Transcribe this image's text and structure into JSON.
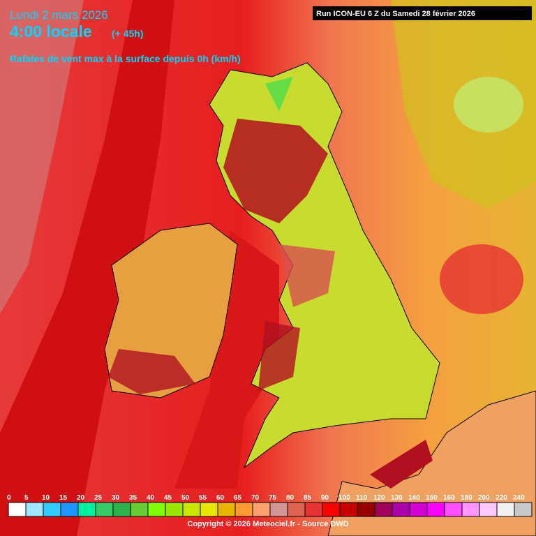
{
  "header": {
    "date": "Lundi 2 mars 2026",
    "time": "4:00 locale",
    "lead": "(+ 45h)",
    "parameter": "Rafales de vent max à la surface depuis 0h (km/h)",
    "run": "Run ICON-EU 6 Z du Samedi 28 février 2026"
  },
  "legend": {
    "ticks": [
      0,
      5,
      10,
      15,
      20,
      25,
      30,
      35,
      40,
      45,
      50,
      55,
      60,
      65,
      70,
      75,
      80,
      85,
      90,
      100,
      110,
      120,
      130,
      140,
      150,
      160,
      180,
      200,
      220,
      240
    ],
    "colors": [
      "#ffffff",
      "#a0e6ff",
      "#33ccff",
      "#1e96ff",
      "#00f0a0",
      "#33cc66",
      "#2fb34f",
      "#66cc33",
      "#80ff00",
      "#99e600",
      "#c8e600",
      "#e6e600",
      "#e6b400",
      "#ff9933",
      "#ffa070",
      "#d29696",
      "#dc6450",
      "#e63232",
      "#ff0000",
      "#c80000",
      "#960000",
      "#a0005a",
      "#aa00aa",
      "#d200d2",
      "#ff00ff",
      "#ff50ff",
      "#ff96ff",
      "#ffc8ff",
      "#f0f0f0",
      "#c8c8c8"
    ]
  },
  "footer": {
    "copyright": "Copyright © 2026 Meteociel.fr - Source DWD"
  }
}
